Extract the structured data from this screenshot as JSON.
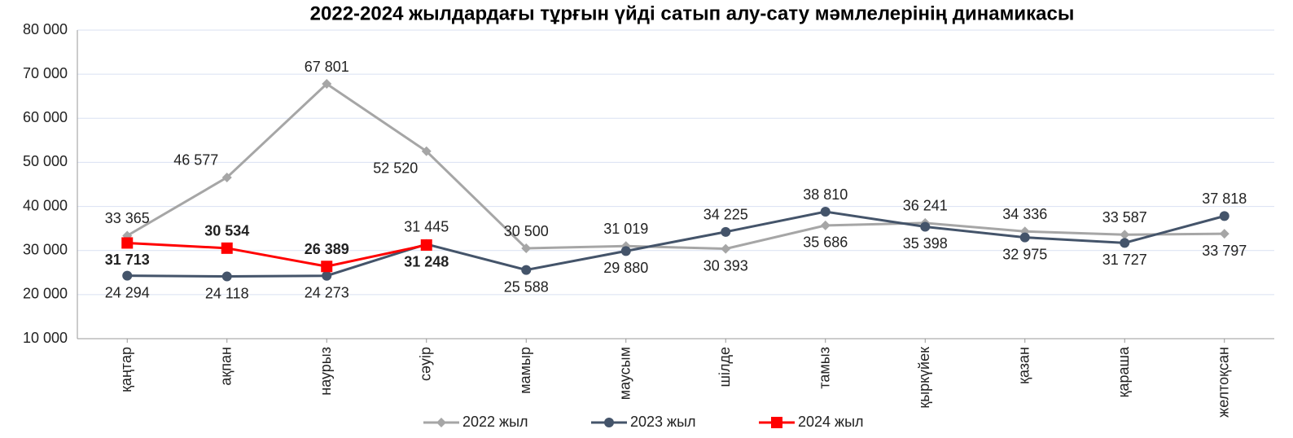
{
  "chart_data": {
    "type": "line",
    "title": "2022-2024 жылдардағы тұрғын үйді сатып алу-сату мәмлелерінің динамикасы",
    "categories": [
      "қаңтар",
      "ақпан",
      "наурыз",
      "сәуір",
      "мамыр",
      "маусым",
      "шілде",
      "тамыз",
      "қыркүйек",
      "қазан",
      "қараша",
      "желтоқсан"
    ],
    "series": [
      {
        "name": "2022 жыл",
        "color": "#a6a6a6",
        "marker": "diamond",
        "values": [
          33365,
          46577,
          67801,
          52520,
          30500,
          31019,
          30393,
          35686,
          36241,
          34336,
          33587,
          33797
        ],
        "value_labels": [
          "33 365",
          "46 577",
          "67 801",
          "52 520",
          "30 500",
          "31 019",
          "30 393",
          "35 686",
          "36 241",
          "34 336",
          "33 587",
          "33 797"
        ]
      },
      {
        "name": "2023 жыл",
        "color": "#44546a",
        "marker": "circle",
        "values": [
          24294,
          24118,
          24273,
          31445,
          25588,
          29880,
          34225,
          38810,
          35398,
          32975,
          31727,
          37818
        ],
        "value_labels": [
          "24 294",
          "24 118",
          "24 273",
          "31 445",
          "25 588",
          "29 880",
          "34 225",
          "38 810",
          "35 398",
          "32 975",
          "31 727",
          "37 818"
        ]
      },
      {
        "name": "2024 жыл",
        "color": "#ff0000",
        "marker": "square",
        "values": [
          31713,
          30534,
          26389,
          31248,
          null,
          null,
          null,
          null,
          null,
          null,
          null,
          null
        ],
        "value_labels": [
          "31 713",
          "30 534",
          "26 389",
          "31 248",
          null,
          null,
          null,
          null,
          null,
          null,
          null,
          null
        ]
      }
    ],
    "ylim": [
      10000,
      80000
    ],
    "yticks": [
      {
        "value": 10000,
        "label": "10 000"
      },
      {
        "value": 20000,
        "label": "20 000"
      },
      {
        "value": 30000,
        "label": "30 000"
      },
      {
        "value": 40000,
        "label": "40 000"
      },
      {
        "value": 50000,
        "label": "50 000"
      },
      {
        "value": 60000,
        "label": "60 000"
      },
      {
        "value": 70000,
        "label": "70 000"
      },
      {
        "value": 80000,
        "label": "80 000"
      }
    ],
    "grid": true,
    "legend": "bottom"
  }
}
